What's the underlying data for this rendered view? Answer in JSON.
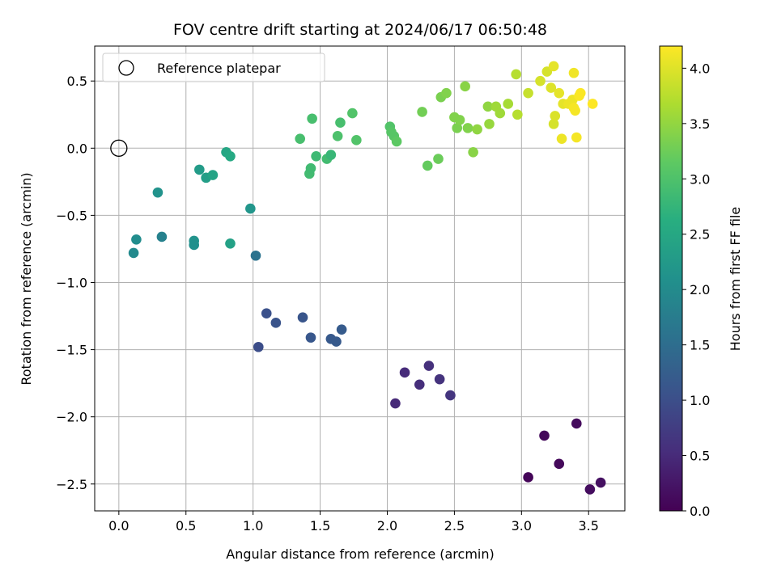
{
  "chart_data": {
    "type": "scatter",
    "title": "FOV centre drift starting at 2024/06/17 06:50:48",
    "xlabel": "Angular distance from reference (arcmin)",
    "ylabel": "Rotation from reference (arcmin)",
    "xlim": [
      -0.18,
      3.77
    ],
    "ylim": [
      -2.7,
      0.76
    ],
    "x_ticks": [
      0.0,
      0.5,
      1.0,
      1.5,
      2.0,
      2.5,
      3.0,
      3.5
    ],
    "x_tick_labels": [
      "0.0",
      "0.5",
      "1.0",
      "1.5",
      "2.0",
      "2.5",
      "3.0",
      "3.5"
    ],
    "y_ticks": [
      0.5,
      0.0,
      -0.5,
      -1.0,
      -1.5,
      -2.0,
      -2.5
    ],
    "y_tick_labels": [
      "0.5",
      "0.0",
      "−0.5",
      "−1.0",
      "−1.5",
      "−2.0",
      "−2.5"
    ],
    "grid": true,
    "colormap": "viridis",
    "colorbar": {
      "label": "Hours from first FF file",
      "range": [
        0.0,
        4.2
      ],
      "ticks": [
        0.0,
        0.5,
        1.0,
        1.5,
        2.0,
        2.5,
        3.0,
        3.5,
        4.0
      ],
      "tick_labels": [
        "0.0",
        "0.5",
        "1.0",
        "1.5",
        "2.0",
        "2.5",
        "3.0",
        "3.5",
        "4.0"
      ]
    },
    "legend": {
      "placement": "top-left",
      "entries": [
        {
          "label": "Reference platepar",
          "marker": "hollow-circle"
        }
      ]
    },
    "reference_point": {
      "x": 0.0,
      "y": 0.0
    },
    "points": [
      {
        "x": 3.05,
        "y": -2.45,
        "c": 0.05
      },
      {
        "x": 3.17,
        "y": -2.14,
        "c": 0.08
      },
      {
        "x": 3.28,
        "y": -2.35,
        "c": 0.1
      },
      {
        "x": 3.41,
        "y": -2.05,
        "c": 0.12
      },
      {
        "x": 3.51,
        "y": -2.54,
        "c": 0.15
      },
      {
        "x": 3.59,
        "y": -2.49,
        "c": 0.18
      },
      {
        "x": 2.06,
        "y": -1.9,
        "c": 0.5
      },
      {
        "x": 2.13,
        "y": -1.67,
        "c": 0.53
      },
      {
        "x": 2.24,
        "y": -1.76,
        "c": 0.56
      },
      {
        "x": 2.31,
        "y": -1.62,
        "c": 0.59
      },
      {
        "x": 2.39,
        "y": -1.72,
        "c": 0.62
      },
      {
        "x": 2.47,
        "y": -1.84,
        "c": 0.65
      },
      {
        "x": 1.04,
        "y": -1.48,
        "c": 1.0
      },
      {
        "x": 1.1,
        "y": -1.23,
        "c": 1.05
      },
      {
        "x": 1.17,
        "y": -1.3,
        "c": 1.1
      },
      {
        "x": 1.37,
        "y": -1.26,
        "c": 1.12
      },
      {
        "x": 1.43,
        "y": -1.41,
        "c": 1.15
      },
      {
        "x": 1.58,
        "y": -1.42,
        "c": 1.18
      },
      {
        "x": 1.62,
        "y": -1.44,
        "c": 1.2
      },
      {
        "x": 1.66,
        "y": -1.35,
        "c": 1.22
      },
      {
        "x": 1.02,
        "y": -0.8,
        "c": 1.6
      },
      {
        "x": 0.11,
        "y": -0.78,
        "c": 2.0
      },
      {
        "x": 0.13,
        "y": -0.68,
        "c": 2.05
      },
      {
        "x": 0.32,
        "y": -0.66,
        "c": 1.85
      },
      {
        "x": 0.56,
        "y": -0.69,
        "c": 2.15
      },
      {
        "x": 0.56,
        "y": -0.72,
        "c": 2.1
      },
      {
        "x": 0.83,
        "y": -0.71,
        "c": 2.4
      },
      {
        "x": 0.98,
        "y": -0.45,
        "c": 2.2
      },
      {
        "x": 0.29,
        "y": -0.33,
        "c": 2.15
      },
      {
        "x": 0.6,
        "y": -0.16,
        "c": 2.3
      },
      {
        "x": 0.65,
        "y": -0.22,
        "c": 2.35
      },
      {
        "x": 0.7,
        "y": -0.2,
        "c": 2.45
      },
      {
        "x": 0.8,
        "y": -0.03,
        "c": 2.5
      },
      {
        "x": 0.83,
        "y": -0.06,
        "c": 2.55
      },
      {
        "x": 1.35,
        "y": 0.07,
        "c": 2.95
      },
      {
        "x": 1.42,
        "y": -0.19,
        "c": 2.9
      },
      {
        "x": 1.43,
        "y": -0.15,
        "c": 2.88
      },
      {
        "x": 1.44,
        "y": 0.22,
        "c": 2.95
      },
      {
        "x": 1.47,
        "y": -0.06,
        "c": 2.85
      },
      {
        "x": 1.55,
        "y": -0.08,
        "c": 2.9
      },
      {
        "x": 1.58,
        "y": -0.05,
        "c": 2.8
      },
      {
        "x": 1.63,
        "y": 0.09,
        "c": 3.0
      },
      {
        "x": 1.65,
        "y": 0.19,
        "c": 2.95
      },
      {
        "x": 1.74,
        "y": 0.26,
        "c": 3.05
      },
      {
        "x": 1.77,
        "y": 0.06,
        "c": 3.05
      },
      {
        "x": 2.02,
        "y": 0.16,
        "c": 3.05
      },
      {
        "x": 2.03,
        "y": 0.12,
        "c": 3.1
      },
      {
        "x": 2.05,
        "y": 0.09,
        "c": 3.1
      },
      {
        "x": 2.07,
        "y": 0.05,
        "c": 3.15
      },
      {
        "x": 2.26,
        "y": 0.27,
        "c": 3.3
      },
      {
        "x": 2.3,
        "y": -0.13,
        "c": 3.2
      },
      {
        "x": 2.38,
        "y": -0.08,
        "c": 3.25
      },
      {
        "x": 2.4,
        "y": 0.38,
        "c": 3.35
      },
      {
        "x": 2.44,
        "y": 0.41,
        "c": 3.4
      },
      {
        "x": 2.5,
        "y": 0.23,
        "c": 3.4
      },
      {
        "x": 2.52,
        "y": 0.15,
        "c": 3.35
      },
      {
        "x": 2.54,
        "y": 0.21,
        "c": 3.4
      },
      {
        "x": 2.58,
        "y": 0.46,
        "c": 3.45
      },
      {
        "x": 2.6,
        "y": 0.15,
        "c": 3.4
      },
      {
        "x": 2.64,
        "y": -0.03,
        "c": 3.45
      },
      {
        "x": 2.67,
        "y": 0.14,
        "c": 3.5
      },
      {
        "x": 2.75,
        "y": 0.31,
        "c": 3.5
      },
      {
        "x": 2.76,
        "y": 0.18,
        "c": 3.55
      },
      {
        "x": 2.81,
        "y": 0.31,
        "c": 3.6
      },
      {
        "x": 2.84,
        "y": 0.26,
        "c": 3.6
      },
      {
        "x": 2.9,
        "y": 0.33,
        "c": 3.65
      },
      {
        "x": 2.96,
        "y": 0.55,
        "c": 3.75
      },
      {
        "x": 2.97,
        "y": 0.25,
        "c": 3.75
      },
      {
        "x": 3.05,
        "y": 0.41,
        "c": 3.85
      },
      {
        "x": 3.14,
        "y": 0.5,
        "c": 3.95
      },
      {
        "x": 3.19,
        "y": 0.57,
        "c": 3.95
      },
      {
        "x": 3.22,
        "y": 0.45,
        "c": 4.0
      },
      {
        "x": 3.24,
        "y": 0.61,
        "c": 4.05
      },
      {
        "x": 3.24,
        "y": 0.18,
        "c": 3.95
      },
      {
        "x": 3.25,
        "y": 0.24,
        "c": 3.98
      },
      {
        "x": 3.28,
        "y": 0.41,
        "c": 4.05
      },
      {
        "x": 3.3,
        "y": 0.07,
        "c": 4.1
      },
      {
        "x": 3.31,
        "y": 0.33,
        "c": 4.05
      },
      {
        "x": 3.35,
        "y": 0.33,
        "c": 4.1
      },
      {
        "x": 3.38,
        "y": 0.36,
        "c": 4.1
      },
      {
        "x": 3.39,
        "y": 0.56,
        "c": 4.12
      },
      {
        "x": 3.39,
        "y": 0.3,
        "c": 4.15
      },
      {
        "x": 3.4,
        "y": 0.28,
        "c": 4.15
      },
      {
        "x": 3.41,
        "y": 0.08,
        "c": 4.15
      },
      {
        "x": 3.43,
        "y": 0.39,
        "c": 4.18
      },
      {
        "x": 3.44,
        "y": 0.41,
        "c": 4.18
      },
      {
        "x": 3.53,
        "y": 0.33,
        "c": 4.2
      }
    ]
  }
}
